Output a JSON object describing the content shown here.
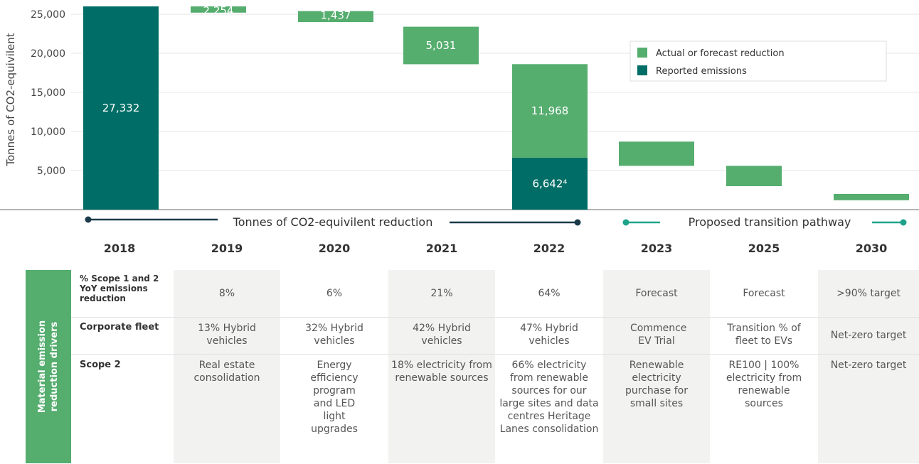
{
  "chart_data": {
    "type": "bar",
    "ylabel": "Tonnes of CO2-equivilent",
    "y_ticks": [
      "5,000",
      "10,000",
      "15,000",
      "20,000",
      "25,000"
    ],
    "ylim": [
      0,
      27000
    ],
    "categories": [
      "2018",
      "2019",
      "2020",
      "2021",
      "2022",
      "2023",
      "2025",
      "2030"
    ],
    "reported_emissions": {
      "name": "Reported emissions",
      "color": "#006e66",
      "values": [
        27332,
        null,
        null,
        null,
        6642,
        null,
        null,
        null
      ],
      "labels": [
        "27,332",
        "",
        "",
        "",
        "6,642⁴",
        "",
        "",
        ""
      ]
    },
    "reduction": {
      "name": "Actual or forecast reduction",
      "color": "#55ad6e",
      "ranges": [
        null,
        [
          25200,
          27000
        ],
        [
          24000,
          25400
        ],
        [
          18600,
          23400
        ],
        [
          6642,
          18610
        ],
        [
          5600,
          8700
        ],
        [
          3000,
          5600
        ],
        [
          1200,
          2000
        ]
      ],
      "labels": [
        "",
        "2,254",
        "1,437",
        "5,031",
        "11,968",
        "",
        "",
        ""
      ]
    },
    "grid": true,
    "legend_placement": "top-right"
  },
  "pathway": {
    "reduction_label": "Tonnes of CO2-equivilent reduction",
    "transition_label": "Proposed transition pathway",
    "reduction_color": "#1a3a4a",
    "transition_color": "#1ea38a"
  },
  "years": [
    "2018",
    "2019",
    "2020",
    "2021",
    "2022",
    "2023",
    "2025",
    "2030"
  ],
  "table": {
    "side_label_line1": "Material emission",
    "side_label_line2": "reduction drivers",
    "rows": [
      {
        "label": "% Scope 1 and 2 YoY emissions reduction",
        "cells": [
          "8%",
          "6%",
          "21%",
          "64%",
          "Forecast",
          "Forecast",
          ">90% target"
        ]
      },
      {
        "label": "Corporate fleet",
        "cells": [
          "13% Hybrid vehicles",
          "32% Hybrid vehicles",
          "42% Hybrid vehicles",
          "47% Hybrid vehicles",
          "Commence EV Trial",
          "Transition % of fleet to EVs",
          "Net-zero target"
        ]
      },
      {
        "label": "Scope 2",
        "cells": [
          "Real estate consolidation",
          "Energy efficiency program and LED light upgrades",
          "18% electricity from renewable sources",
          "66% electricity from renewable sources for our large sites and data centres Heritage Lanes consolidation",
          "Renewable electricity purchase for small sites",
          "RE100 | 100% electricity from renewable sources",
          "Net-zero target"
        ]
      }
    ]
  }
}
